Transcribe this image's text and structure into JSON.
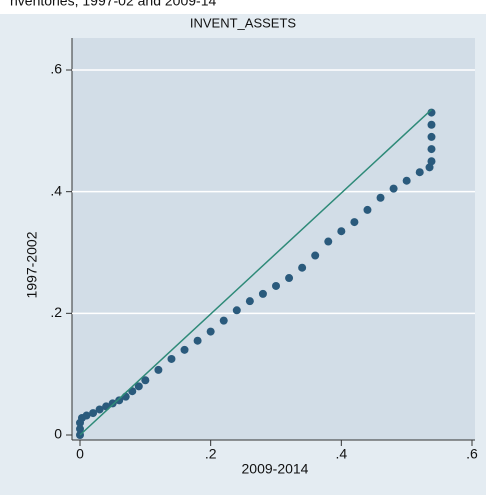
{
  "chart_data": {
    "type": "scatter",
    "heading": "nventories, 1997-02 and 2009-14",
    "title": "INVENT_ASSETS",
    "xlabel": "2009-2014",
    "ylabel": "1997-2002",
    "xlim": [
      0,
      0.6
    ],
    "ylim": [
      0,
      0.6
    ],
    "xticks": [
      0,
      {
        "value": 0.2,
        "label": ".2"
      },
      {
        "value": 0.4,
        "label": ".4"
      },
      {
        "value": 0.6,
        "label": ".6"
      }
    ],
    "yticks": [
      0,
      {
        "value": 0.2,
        "label": ".2"
      },
      {
        "value": 0.4,
        "label": ".4"
      },
      {
        "value": 0.6,
        "label": ".6"
      }
    ],
    "grid": true,
    "series": [
      {
        "type": "scatter",
        "color": "#2a5a7c",
        "x": [
          0,
          0,
          0,
          0.003,
          0.01,
          0.02,
          0.03,
          0.04,
          0.05,
          0.06,
          0.07,
          0.08,
          0.09,
          0.1,
          0.12,
          0.14,
          0.16,
          0.18,
          0.2,
          0.22,
          0.24,
          0.26,
          0.28,
          0.3,
          0.32,
          0.34,
          0.36,
          0.38,
          0.4,
          0.42,
          0.44,
          0.46,
          0.48,
          0.5,
          0.52,
          0.535,
          0.538,
          0.538,
          0.538,
          0.538,
          0.538
        ],
        "values": [
          0,
          0.01,
          0.02,
          0.028,
          0.032,
          0.036,
          0.042,
          0.047,
          0.052,
          0.057,
          0.063,
          0.072,
          0.08,
          0.09,
          0.107,
          0.125,
          0.14,
          0.155,
          0.17,
          0.188,
          0.205,
          0.22,
          0.232,
          0.245,
          0.258,
          0.275,
          0.295,
          0.318,
          0.335,
          0.35,
          0.37,
          0.39,
          0.405,
          0.418,
          0.432,
          0.44,
          0.45,
          0.47,
          0.49,
          0.51,
          0.53
        ]
      },
      {
        "type": "line",
        "color": "#2e8a78",
        "x": [
          0,
          0.538
        ],
        "values": [
          0,
          0.535
        ]
      }
    ]
  }
}
